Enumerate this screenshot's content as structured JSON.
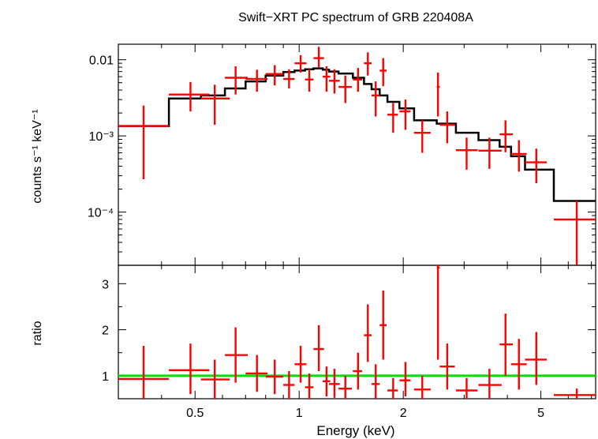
{
  "chart_data": [
    {
      "type": "scatter",
      "title": "Swift−XRT PC spectrum of GRB 220408A",
      "xlabel": "Energy (keV)",
      "ylabel": "counts s⁻¹ keV⁻¹",
      "xscale": "log",
      "yscale": "log",
      "xlim": [
        0.3,
        7.2
      ],
      "ylim": [
        2e-05,
        0.016
      ],
      "x_ticks": [
        {
          "value": 0.5,
          "label": "0.5"
        },
        {
          "value": 1,
          "label": "1"
        },
        {
          "value": 2,
          "label": "2"
        },
        {
          "value": 5,
          "label": "5"
        }
      ],
      "y_ticks": [
        {
          "value": 0.01,
          "label": "0.01"
        },
        {
          "value": 0.001,
          "label": "10⁻³"
        },
        {
          "value": 0.0001,
          "label": "10⁻⁴"
        }
      ],
      "data_color": "#ff0000",
      "model_color": "#000000",
      "series": [
        {
          "kind": "data",
          "points": [
            {
              "x": 0.355,
              "xlo": 0.3,
              "xhi": 0.42,
              "y": 0.00135,
              "ylo": 0.00027,
              "yhi": 0.0025
            },
            {
              "x": 0.485,
              "xlo": 0.42,
              "xhi": 0.55,
              "y": 0.0035,
              "ylo": 0.0021,
              "yhi": 0.0051
            },
            {
              "x": 0.57,
              "xlo": 0.52,
              "xhi": 0.63,
              "y": 0.0031,
              "ylo": 0.0014,
              "yhi": 0.0047
            },
            {
              "x": 0.655,
              "xlo": 0.61,
              "xhi": 0.71,
              "y": 0.0058,
              "ylo": 0.0035,
              "yhi": 0.0082
            },
            {
              "x": 0.755,
              "xlo": 0.7,
              "xhi": 0.81,
              "y": 0.0056,
              "ylo": 0.0038,
              "yhi": 0.0074
            },
            {
              "x": 0.85,
              "xlo": 0.8,
              "xhi": 0.9,
              "y": 0.0065,
              "ylo": 0.0046,
              "yhi": 0.0085
            },
            {
              "x": 0.935,
              "xlo": 0.9,
              "xhi": 0.97,
              "y": 0.0056,
              "ylo": 0.0042,
              "yhi": 0.0075
            },
            {
              "x": 1.01,
              "xlo": 0.97,
              "xhi": 1.05,
              "y": 0.009,
              "ylo": 0.0068,
              "yhi": 0.0115
            },
            {
              "x": 1.07,
              "xlo": 1.04,
              "xhi": 1.1,
              "y": 0.0055,
              "ylo": 0.0038,
              "yhi": 0.0075
            },
            {
              "x": 1.14,
              "xlo": 1.1,
              "xhi": 1.18,
              "y": 0.0105,
              "ylo": 0.0078,
              "yhi": 0.0148
            },
            {
              "x": 1.2,
              "xlo": 1.17,
              "xhi": 1.23,
              "y": 0.006,
              "ylo": 0.0038,
              "yhi": 0.0082
            },
            {
              "x": 1.265,
              "xlo": 1.22,
              "xhi": 1.31,
              "y": 0.0053,
              "ylo": 0.0036,
              "yhi": 0.0075
            },
            {
              "x": 1.36,
              "xlo": 1.3,
              "xhi": 1.42,
              "y": 0.0044,
              "ylo": 0.0027,
              "yhi": 0.0062
            },
            {
              "x": 1.48,
              "xlo": 1.43,
              "xhi": 1.52,
              "y": 0.0055,
              "ylo": 0.0038,
              "yhi": 0.0078
            },
            {
              "x": 1.58,
              "xlo": 1.54,
              "xhi": 1.62,
              "y": 0.009,
              "ylo": 0.0062,
              "yhi": 0.0125
            },
            {
              "x": 1.665,
              "xlo": 1.62,
              "xhi": 1.71,
              "y": 0.0034,
              "ylo": 0.0018,
              "yhi": 0.0052
            },
            {
              "x": 1.75,
              "xlo": 1.71,
              "xhi": 1.79,
              "y": 0.0072,
              "ylo": 0.0045,
              "yhi": 0.0105
            },
            {
              "x": 1.87,
              "xlo": 1.8,
              "xhi": 1.93,
              "y": 0.0019,
              "ylo": 0.0011,
              "yhi": 0.0027
            },
            {
              "x": 2.03,
              "xlo": 1.95,
              "xhi": 2.1,
              "y": 0.0021,
              "ylo": 0.0012,
              "yhi": 0.003
            },
            {
              "x": 2.27,
              "xlo": 2.15,
              "xhi": 2.4,
              "y": 0.0011,
              "ylo": 0.0006,
              "yhi": 0.0016
            },
            {
              "x": 2.52,
              "xlo": 2.5,
              "xhi": 2.55,
              "y": 0.0044,
              "ylo": 0.0018,
              "yhi": 0.0068
            },
            {
              "x": 2.68,
              "xlo": 2.55,
              "xhi": 2.82,
              "y": 0.0014,
              "ylo": 0.0008,
              "yhi": 0.0021
            },
            {
              "x": 3.05,
              "xlo": 2.84,
              "xhi": 3.28,
              "y": 0.00065,
              "ylo": 0.00036,
              "yhi": 0.00095
            },
            {
              "x": 3.55,
              "xlo": 3.3,
              "xhi": 3.85,
              "y": 0.00064,
              "ylo": 0.00037,
              "yhi": 0.00095
            },
            {
              "x": 3.95,
              "xlo": 3.8,
              "xhi": 4.15,
              "y": 0.00105,
              "ylo": 0.00061,
              "yhi": 0.0016
            },
            {
              "x": 4.32,
              "xlo": 4.1,
              "xhi": 4.55,
              "y": 0.00058,
              "ylo": 0.00034,
              "yhi": 0.00088
            },
            {
              "x": 4.85,
              "xlo": 4.5,
              "xhi": 5.2,
              "y": 0.00045,
              "ylo": 0.00024,
              "yhi": 0.00068
            },
            {
              "x": 6.35,
              "xlo": 5.45,
              "xhi": 7.2,
              "y": 8e-05,
              "ylo": 2e-05,
              "yhi": 0.00014
            }
          ]
        },
        {
          "kind": "model",
          "steps": [
            {
              "xlo": 0.3,
              "xhi": 0.42,
              "y": 0.00135
            },
            {
              "xlo": 0.42,
              "xhi": 0.52,
              "y": 0.0031
            },
            {
              "xlo": 0.52,
              "xhi": 0.61,
              "y": 0.0034
            },
            {
              "xlo": 0.61,
              "xhi": 0.7,
              "y": 0.0042
            },
            {
              "xlo": 0.7,
              "xhi": 0.8,
              "y": 0.0052
            },
            {
              "xlo": 0.8,
              "xhi": 0.9,
              "y": 0.0062
            },
            {
              "xlo": 0.9,
              "xhi": 0.97,
              "y": 0.0069
            },
            {
              "xlo": 0.97,
              "xhi": 1.04,
              "y": 0.0072
            },
            {
              "xlo": 1.04,
              "xhi": 1.1,
              "y": 0.0075
            },
            {
              "xlo": 1.1,
              "xhi": 1.17,
              "y": 0.0077
            },
            {
              "xlo": 1.17,
              "xhi": 1.22,
              "y": 0.0074
            },
            {
              "xlo": 1.22,
              "xhi": 1.3,
              "y": 0.007
            },
            {
              "xlo": 1.3,
              "xhi": 1.43,
              "y": 0.0066
            },
            {
              "xlo": 1.43,
              "xhi": 1.54,
              "y": 0.0058
            },
            {
              "xlo": 1.54,
              "xhi": 1.62,
              "y": 0.0048
            },
            {
              "xlo": 1.62,
              "xhi": 1.71,
              "y": 0.0041
            },
            {
              "xlo": 1.71,
              "xhi": 1.8,
              "y": 0.0034
            },
            {
              "xlo": 1.8,
              "xhi": 1.95,
              "y": 0.0028
            },
            {
              "xlo": 1.95,
              "xhi": 2.15,
              "y": 0.0023
            },
            {
              "xlo": 2.15,
              "xhi": 2.5,
              "y": 0.0016
            },
            {
              "xlo": 2.5,
              "xhi": 2.84,
              "y": 0.00145
            },
            {
              "xlo": 2.84,
              "xhi": 3.3,
              "y": 0.0011
            },
            {
              "xlo": 3.3,
              "xhi": 3.8,
              "y": 0.00088
            },
            {
              "xlo": 3.8,
              "xhi": 4.1,
              "y": 0.00072
            },
            {
              "xlo": 4.1,
              "xhi": 4.5,
              "y": 0.00054
            },
            {
              "xlo": 4.5,
              "xhi": 5.45,
              "y": 0.00036
            },
            {
              "xlo": 5.45,
              "xhi": 7.2,
              "y": 0.00014
            }
          ]
        }
      ]
    },
    {
      "type": "scatter",
      "xlabel": "Energy (keV)",
      "ylabel": "ratio",
      "xscale": "log",
      "xlim": [
        0.3,
        7.2
      ],
      "ylim": [
        0.5,
        3.4
      ],
      "y_ticks": [
        {
          "value": 1,
          "label": "1"
        },
        {
          "value": 2,
          "label": "2"
        },
        {
          "value": 3,
          "label": "3"
        }
      ],
      "reference_line": {
        "y": 1,
        "color": "#00dd00"
      },
      "data_color": "#ff0000",
      "series": [
        {
          "kind": "ratio",
          "points": [
            {
              "x": 0.355,
              "xlo": 0.3,
              "xhi": 0.42,
              "y": 0.93,
              "ylo": 0.5,
              "yhi": 1.65
            },
            {
              "x": 0.485,
              "xlo": 0.42,
              "xhi": 0.55,
              "y": 1.12,
              "ylo": 0.6,
              "yhi": 1.7
            },
            {
              "x": 0.57,
              "xlo": 0.52,
              "xhi": 0.63,
              "y": 0.92,
              "ylo": 0.5,
              "yhi": 1.35
            },
            {
              "x": 0.655,
              "xlo": 0.61,
              "xhi": 0.71,
              "y": 1.45,
              "ylo": 0.85,
              "yhi": 2.05
            },
            {
              "x": 0.755,
              "xlo": 0.7,
              "xhi": 0.81,
              "y": 1.05,
              "ylo": 0.65,
              "yhi": 1.45
            },
            {
              "x": 0.85,
              "xlo": 0.8,
              "xhi": 0.9,
              "y": 0.98,
              "ylo": 0.6,
              "yhi": 1.35
            },
            {
              "x": 0.935,
              "xlo": 0.9,
              "xhi": 0.97,
              "y": 0.8,
              "ylo": 0.5,
              "yhi": 1.1
            },
            {
              "x": 1.01,
              "xlo": 0.97,
              "xhi": 1.05,
              "y": 1.25,
              "ylo": 0.85,
              "yhi": 1.65
            },
            {
              "x": 1.07,
              "xlo": 1.04,
              "xhi": 1.1,
              "y": 0.75,
              "ylo": 0.5,
              "yhi": 1.05
            },
            {
              "x": 1.14,
              "xlo": 1.1,
              "xhi": 1.18,
              "y": 1.58,
              "ylo": 1.1,
              "yhi": 2.1
            },
            {
              "x": 1.2,
              "xlo": 1.17,
              "xhi": 1.23,
              "y": 0.88,
              "ylo": 0.55,
              "yhi": 1.2
            },
            {
              "x": 1.265,
              "xlo": 1.22,
              "xhi": 1.31,
              "y": 0.82,
              "ylo": 0.52,
              "yhi": 1.15
            },
            {
              "x": 1.36,
              "xlo": 1.3,
              "xhi": 1.42,
              "y": 0.72,
              "ylo": 0.5,
              "yhi": 1.0
            },
            {
              "x": 1.48,
              "xlo": 1.43,
              "xhi": 1.52,
              "y": 1.1,
              "ylo": 0.7,
              "yhi": 1.5
            },
            {
              "x": 1.58,
              "xlo": 1.54,
              "xhi": 1.62,
              "y": 1.88,
              "ylo": 1.3,
              "yhi": 2.55
            },
            {
              "x": 1.665,
              "xlo": 1.62,
              "xhi": 1.71,
              "y": 0.82,
              "ylo": 0.5,
              "yhi": 1.25
            },
            {
              "x": 1.75,
              "xlo": 1.71,
              "xhi": 1.79,
              "y": 2.1,
              "ylo": 1.35,
              "yhi": 2.85
            },
            {
              "x": 1.87,
              "xlo": 1.8,
              "xhi": 1.93,
              "y": 0.68,
              "ylo": 0.5,
              "yhi": 0.95
            },
            {
              "x": 2.03,
              "xlo": 1.95,
              "xhi": 2.1,
              "y": 0.9,
              "ylo": 0.55,
              "yhi": 1.3
            },
            {
              "x": 2.27,
              "xlo": 2.15,
              "xhi": 2.4,
              "y": 0.7,
              "ylo": 0.5,
              "yhi": 1.0
            },
            {
              "x": 2.52,
              "xlo": 2.5,
              "xhi": 2.55,
              "y": 3.35,
              "ylo": 1.35,
              "yhi": 3.4
            },
            {
              "x": 2.68,
              "xlo": 2.55,
              "xhi": 2.82,
              "y": 1.2,
              "ylo": 0.7,
              "yhi": 1.7
            },
            {
              "x": 3.05,
              "xlo": 2.84,
              "xhi": 3.28,
              "y": 0.68,
              "ylo": 0.5,
              "yhi": 0.95
            },
            {
              "x": 3.55,
              "xlo": 3.3,
              "xhi": 3.85,
              "y": 0.8,
              "ylo": 0.5,
              "yhi": 1.15
            },
            {
              "x": 3.95,
              "xlo": 3.8,
              "xhi": 4.15,
              "y": 1.68,
              "ylo": 1.0,
              "yhi": 2.35
            },
            {
              "x": 4.32,
              "xlo": 4.1,
              "xhi": 4.55,
              "y": 1.25,
              "ylo": 0.7,
              "yhi": 1.8
            },
            {
              "x": 4.85,
              "xlo": 4.5,
              "xhi": 5.2,
              "y": 1.35,
              "ylo": 0.8,
              "yhi": 1.95
            },
            {
              "x": 6.35,
              "xlo": 5.45,
              "xhi": 7.2,
              "y": 0.58,
              "ylo": 0.5,
              "yhi": 0.72
            }
          ]
        }
      ]
    }
  ]
}
